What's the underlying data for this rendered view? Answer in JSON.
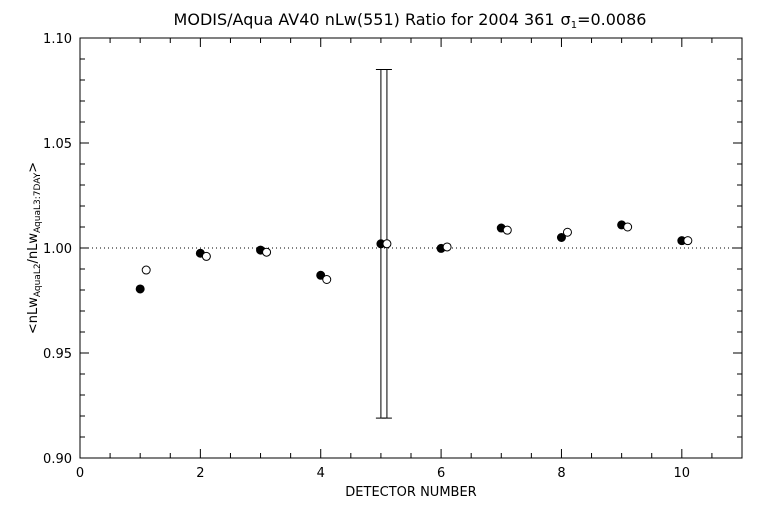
{
  "chart_data": {
    "type": "scatter",
    "title": "MODIS/Aqua AV40 nLw(551) Ratio for 2004 361",
    "title_sigma": "σ",
    "title_sigma_sub": "1",
    "title_sigma_value": "=0.0086",
    "xlabel": "DETECTOR NUMBER",
    "ylabel": {
      "prefix": "<nLw",
      "sub1": "AquaL2",
      "middle": "/nLw",
      "sub2": "AquaL3:7DAY",
      "suffix": ">"
    },
    "xlim": [
      0,
      11
    ],
    "ylim": [
      0.9,
      1.1
    ],
    "x_ticks": [
      0,
      2,
      4,
      6,
      8,
      10
    ],
    "x_tick_labels": [
      "0",
      "2",
      "4",
      "6",
      "8",
      "10"
    ],
    "x_minor_step": 0.5,
    "y_ticks": [
      0.9,
      0.95,
      1.0,
      1.05,
      1.1
    ],
    "y_tick_labels": [
      "0.90",
      "0.95",
      "1.00",
      "1.05",
      "1.10"
    ],
    "y_minor_step": 0.01,
    "reference_line": {
      "y": 1.0,
      "style": "dotted"
    },
    "grid": false,
    "series": [
      {
        "marker": "filled-circle",
        "x": [
          1,
          2,
          3,
          4,
          5,
          6,
          7,
          8,
          9,
          10
        ],
        "y": [
          0.9805,
          0.9975,
          0.999,
          0.987,
          1.002,
          0.9998,
          1.0095,
          1.005,
          1.011,
          1.0035
        ]
      },
      {
        "marker": "open-circle",
        "x": [
          1.1,
          2.1,
          3.1,
          4.1,
          5.1,
          6.1,
          7.1,
          8.1,
          9.1,
          10.1
        ],
        "y": [
          0.9895,
          0.996,
          0.998,
          0.985,
          1.002,
          1.0005,
          1.0085,
          1.0075,
          1.01,
          1.0035
        ]
      }
    ],
    "error_bars": [
      {
        "x": 5.0,
        "low": 0.919,
        "high": 1.085
      },
      {
        "x": 5.1,
        "low": 0.919,
        "high": 1.085
      }
    ]
  }
}
